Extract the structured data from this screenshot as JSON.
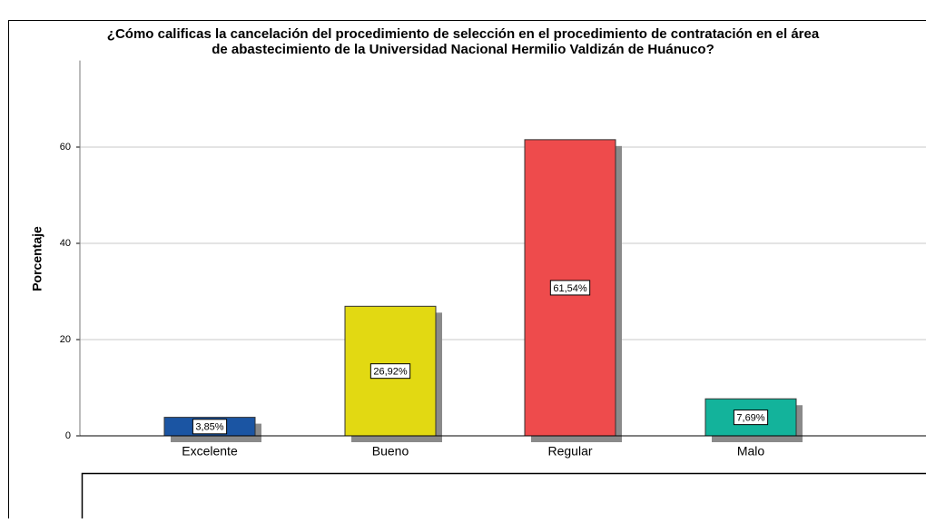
{
  "chart_data": {
    "type": "bar",
    "title": [
      "¿Cómo calificas la cancelación del procedimiento de selección en el procedimiento de contratación  en el área",
      "de abastecimiento de la Universidad Nacional Hermilio Valdizán de Huánuco?"
    ],
    "y_label": "Porcentaje",
    "categories": [
      "Excelente",
      "Bueno",
      "Regular",
      "Malo"
    ],
    "values": [
      3.85,
      26.92,
      61.54,
      7.69
    ],
    "value_labels": [
      "3,85%",
      "26,92%",
      "61,54%",
      "7,69%"
    ],
    "colors": [
      "#1b55a3",
      "#e2d912",
      "#ee4b4c",
      "#13b39b"
    ],
    "ylim": [
      0,
      78
    ],
    "yticks": [
      0,
      20,
      40,
      60
    ],
    "grid": true
  }
}
